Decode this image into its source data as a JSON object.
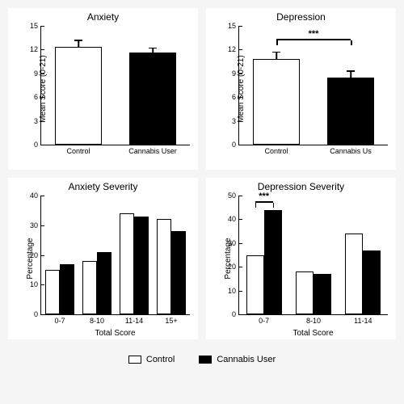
{
  "colors": {
    "control_fill": "#ffffff",
    "cannabis_fill": "#000000",
    "border": "#000000",
    "bg": "#ffffff"
  },
  "legend": {
    "control": "Control",
    "cannabis": "Cannabis User"
  },
  "panels": {
    "anxiety": {
      "title": "Anxiety",
      "ylabel": "Mean Score (0-21)",
      "ylim": [
        0,
        15
      ],
      "ytick_step": 3,
      "bars": [
        {
          "label": "Control",
          "value": 12.3,
          "err": 0.8,
          "fill": "control"
        },
        {
          "label": "Cannabis User",
          "value": 11.6,
          "err": 0.5,
          "fill": "cannabis"
        }
      ],
      "bar_width": 0.32
    },
    "depression": {
      "title": "Depression",
      "ylabel": "Mean Score (0-21)",
      "ylim": [
        0,
        15
      ],
      "ytick_step": 3,
      "bars": [
        {
          "label": "Control",
          "value": 10.8,
          "err": 0.8,
          "fill": "control"
        },
        {
          "label": "Cannabis Us",
          "value": 8.5,
          "err": 0.7,
          "fill": "cannabis"
        }
      ],
      "bar_width": 0.32,
      "sig": {
        "from": 0,
        "to": 1,
        "y": 13.2,
        "text": "***"
      }
    },
    "anxiety_sev": {
      "title": "Anxiety Severity",
      "ylabel": "Percentage",
      "xlabel": "Total Score",
      "ylim": [
        0,
        40
      ],
      "ytick_step": 10,
      "groups": [
        "0-7",
        "8-10",
        "11-14",
        "15+"
      ],
      "series": [
        {
          "name": "Control",
          "fill": "control",
          "values": [
            15,
            18,
            34,
            32
          ]
        },
        {
          "name": "Cannabis User",
          "fill": "cannabis",
          "values": [
            17,
            21,
            33,
            28
          ]
        }
      ],
      "bar_width": 0.1
    },
    "depression_sev": {
      "title": "Depression Severity",
      "ylabel": "Percentage",
      "xlabel": "Total Score",
      "ylim": [
        0,
        50
      ],
      "ytick_step": 10,
      "groups": [
        "0-7",
        "8-10",
        "11-14"
      ],
      "series": [
        {
          "name": "Control",
          "fill": "control",
          "values": [
            25,
            18,
            34
          ]
        },
        {
          "name": "Cannabis User",
          "fill": "cannabis",
          "values": [
            44,
            17,
            27
          ]
        }
      ],
      "bar_width": 0.12,
      "sig": {
        "group": 0,
        "y": 47,
        "text": "***"
      }
    }
  }
}
